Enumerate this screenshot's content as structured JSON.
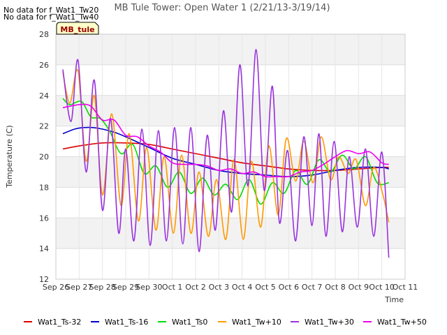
{
  "chart_data": {
    "type": "line",
    "title": "MB Tule Tower: Open Water 1 (2/21/13-3/19/14)",
    "xlabel": "Time",
    "ylabel": "Temperature (C)",
    "ylim": [
      12,
      28
    ],
    "yticks": [
      12,
      14,
      16,
      18,
      20,
      22,
      24,
      26,
      28
    ],
    "xlim": [
      0,
      15
    ],
    "xticks": [
      "Sep 26",
      "Sep 27",
      "Sep 28",
      "Sep 29",
      "Sep 30",
      "Oct 1",
      "Oct 2",
      "Oct 3",
      "Oct 4",
      "Oct 5",
      "Oct 6",
      "Oct 7",
      "Oct 8",
      "Oct 9",
      "Oct 10",
      "Oct 11"
    ],
    "x_unit": "days since Sep 26",
    "grid": true,
    "legend_position": "bottom",
    "notes": [
      "No data for f_Wat1_Tw20",
      "No data for f_Wat1_Tw40"
    ],
    "badge": "MB_tule",
    "series": [
      {
        "name": "Wat1_Ts-32",
        "color": "#dd0000",
        "x": [
          0.3,
          1,
          2,
          3,
          4,
          5,
          6,
          7,
          8,
          9,
          10,
          11,
          12,
          13,
          14,
          14.3
        ],
        "y": [
          20.5,
          20.7,
          20.9,
          20.9,
          20.8,
          20.5,
          20.2,
          19.9,
          19.6,
          19.4,
          19.2,
          19.1,
          19.1,
          19.2,
          19.3,
          19.3
        ]
      },
      {
        "name": "Wat1_Ts-16",
        "color": "#0000cc",
        "x": [
          0.3,
          0.8,
          1.2,
          1.6,
          2,
          2.5,
          3,
          4,
          5,
          6,
          7,
          8,
          9,
          10,
          11,
          12,
          13,
          14,
          14.3
        ],
        "y": [
          21.5,
          21.8,
          21.9,
          21.9,
          21.8,
          21.6,
          21.3,
          20.6,
          19.9,
          19.5,
          19.1,
          18.9,
          18.8,
          18.7,
          18.8,
          19.1,
          19.3,
          19.3,
          19.2
        ]
      },
      {
        "name": "Wat1_Ts0",
        "color": "#00dd00",
        "x": [
          0.3,
          0.6,
          1.1,
          1.5,
          1.9,
          2.3,
          2.8,
          3.3,
          3.8,
          4.3,
          4.8,
          5.3,
          5.8,
          6.3,
          6.8,
          7.3,
          7.8,
          8.3,
          8.8,
          9.3,
          9.8,
          10.3,
          10.8,
          11.3,
          11.8,
          12.3,
          12.8,
          13.3,
          13.8,
          14.3
        ],
        "y": [
          23.8,
          23.4,
          23.6,
          22.6,
          22.5,
          21.7,
          20.2,
          20.8,
          18.9,
          19.4,
          18.0,
          19.0,
          17.6,
          18.6,
          17.5,
          18.2,
          17.2,
          18.5,
          16.9,
          18.3,
          17.6,
          19.1,
          18.2,
          19.8,
          19.0,
          20.1,
          19.2,
          20.0,
          18.3,
          18.3
        ]
      },
      {
        "name": "Wat1_Tw+10",
        "color": "#ff9900",
        "x": [
          0.3,
          0.6,
          0.95,
          1.3,
          1.65,
          2.0,
          2.4,
          2.8,
          3.15,
          3.55,
          3.9,
          4.3,
          4.65,
          5.05,
          5.4,
          5.8,
          6.15,
          6.55,
          6.9,
          7.3,
          7.65,
          8.05,
          8.4,
          8.8,
          9.15,
          9.55,
          9.9,
          10.3,
          10.65,
          11.05,
          11.4,
          11.8,
          12.15,
          12.55,
          12.9,
          13.3,
          13.65,
          14.05,
          14.3
        ],
        "y": [
          25.5,
          23.5,
          25.6,
          19.7,
          24.0,
          17.5,
          22.8,
          16.8,
          21.5,
          15.8,
          20.6,
          15.2,
          20.0,
          15.0,
          20.1,
          15.0,
          19.0,
          14.8,
          18.5,
          14.6,
          19.8,
          14.6,
          19.7,
          15.4,
          20.7,
          16.2,
          21.2,
          18.4,
          21.0,
          18.3,
          21.3,
          18.5,
          20.0,
          18.9,
          19.8,
          16.8,
          19.3,
          17.5,
          15.7
        ]
      },
      {
        "name": "Wat1_Tw+30",
        "color": "#9933dd",
        "x": [
          0.3,
          0.65,
          0.95,
          1.3,
          1.65,
          2.0,
          2.35,
          2.7,
          3.0,
          3.35,
          3.7,
          4.05,
          4.4,
          4.75,
          5.1,
          5.45,
          5.8,
          6.15,
          6.5,
          6.85,
          7.2,
          7.55,
          7.9,
          8.25,
          8.6,
          8.95,
          9.3,
          9.6,
          9.95,
          10.3,
          10.65,
          11.0,
          11.3,
          11.6,
          11.95,
          12.3,
          12.6,
          12.95,
          13.3,
          13.65,
          14.0,
          14.3
        ],
        "y": [
          25.7,
          22.3,
          26.3,
          19.0,
          25.0,
          16.5,
          22.5,
          15.0,
          20.5,
          14.5,
          21.8,
          14.2,
          21.7,
          14.5,
          21.9,
          14.3,
          21.9,
          13.8,
          21.4,
          15.2,
          23.0,
          16.4,
          26.0,
          18.1,
          27.0,
          17.8,
          24.6,
          15.7,
          20.4,
          14.5,
          21.3,
          15.5,
          21.5,
          14.8,
          21.0,
          15.1,
          20.0,
          15.4,
          20.5,
          14.8,
          20.3,
          13.4
        ]
      },
      {
        "name": "Wat1_Tw+50",
        "color": "#ee00ee",
        "x": [
          0.3,
          1,
          1.5,
          2,
          2.5,
          3,
          3.5,
          4,
          4.5,
          5,
          5.5,
          6,
          6.5,
          7,
          7.5,
          8,
          8.5,
          9,
          9.5,
          10,
          10.5,
          11,
          11.5,
          12,
          12.5,
          13,
          13.5,
          14,
          14.3
        ],
        "y": [
          23.2,
          23.4,
          23.3,
          22.4,
          22.4,
          21.4,
          21.3,
          20.7,
          20.3,
          19.6,
          19.5,
          19.5,
          19.4,
          19.1,
          19.2,
          18.9,
          19.0,
          18.7,
          18.7,
          18.7,
          19.0,
          19.1,
          19.5,
          20.0,
          20.4,
          20.2,
          20.3,
          19.6,
          19.5
        ]
      }
    ]
  }
}
